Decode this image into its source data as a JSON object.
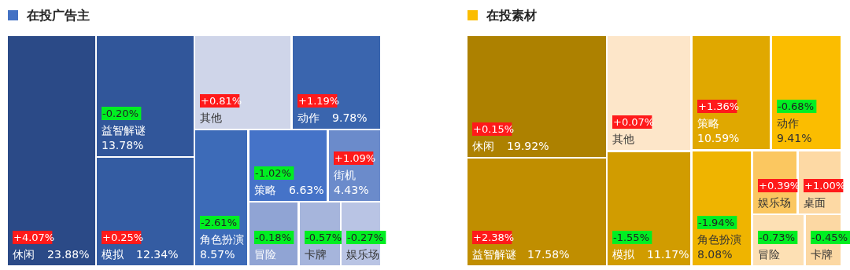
{
  "chart_data": [
    {
      "type": "other",
      "legend": "top left",
      "categories": [
        "休闲",
        "益智解谜",
        "模拟",
        "其他",
        "动作",
        "角色扮演",
        "策略",
        "街机",
        "冒险",
        "卡牌",
        "娱乐场"
      ],
      "series": [
        {
          "name": "在投广告主",
          "color": "#4472c4",
          "values": [
            23.88,
            13.78,
            12.34,
            null,
            9.78,
            8.57,
            6.63,
            4.43,
            null,
            null,
            null
          ],
          "value_labels": [
            "23.88%",
            "13.78%",
            "12.34%",
            null,
            "9.78%",
            "8.57%",
            "6.63%",
            "4.43%",
            null,
            null,
            null
          ],
          "colors": [
            "#2b4a87",
            "#31569a",
            "#345ca2",
            "#cfd5e9",
            "#3a65ae",
            "#3d6bb8",
            "#4573c8",
            "#6b8bcb",
            "#90a4d4",
            "#a6b5dc",
            "#b9c4e4"
          ]
        }
      ],
      "annotations": [
        {
          "text": "+4.07%",
          "x": "休闲"
        },
        {
          "text": "-0.20%",
          "x": "益智解谜"
        },
        {
          "text": "+0.25%",
          "x": "模拟"
        },
        {
          "text": "+0.81%",
          "x": "其他"
        },
        {
          "text": "+1.19%",
          "x": "动作"
        },
        {
          "text": "-2.61%",
          "x": "角色扮演"
        },
        {
          "text": "-1.02%",
          "x": "策略"
        },
        {
          "text": "+1.09%",
          "x": "街机"
        },
        {
          "text": "-0.18%",
          "x": "冒险"
        },
        {
          "text": "-0.57%",
          "x": "卡牌"
        },
        {
          "text": "-0.27%",
          "x": "娱乐场"
        }
      ]
    },
    {
      "type": "other",
      "legend": "top left",
      "categories": [
        "休闲",
        "益智解谜",
        "其他",
        "模拟",
        "策略",
        "动作",
        "角色扮演",
        "娱乐场",
        "桌面",
        "冒险",
        "卡牌"
      ],
      "series": [
        {
          "name": "在投素材",
          "color": "#fbbd00",
          "values": [
            19.92,
            17.58,
            null,
            11.17,
            10.59,
            9.41,
            8.08,
            null,
            null,
            null,
            null
          ],
          "value_labels": [
            "19.92%",
            "17.58%",
            null,
            "11.17%",
            "10.59%",
            "9.41%",
            "8.08%",
            null,
            null,
            null,
            null
          ],
          "colors": [
            "#ad8100",
            "#c08e00",
            "#fde6c9",
            "#d19c00",
            "#e0a800",
            "#fbbd00",
            "#efb400",
            "#fbc760",
            "#fdd9a4",
            "#fde0b4",
            "#fcd8a3"
          ]
        }
      ],
      "annotations": [
        {
          "text": "+0.15%",
          "x": "休闲"
        },
        {
          "text": "+2.38%",
          "x": "益智解谜"
        },
        {
          "text": "+0.07%",
          "x": "其他"
        },
        {
          "text": "-1.55%",
          "x": "模拟"
        },
        {
          "text": "+1.36%",
          "x": "策略"
        },
        {
          "text": "-0.68%",
          "x": "动作"
        },
        {
          "text": "-1.94%",
          "x": "角色扮演"
        },
        {
          "text": "+0.39%",
          "x": "娱乐场"
        },
        {
          "text": "+1.00%",
          "x": "桌面"
        },
        {
          "text": "-0.73%",
          "x": "冒险"
        },
        {
          "text": "-0.45%",
          "x": "卡牌"
        }
      ]
    }
  ]
}
